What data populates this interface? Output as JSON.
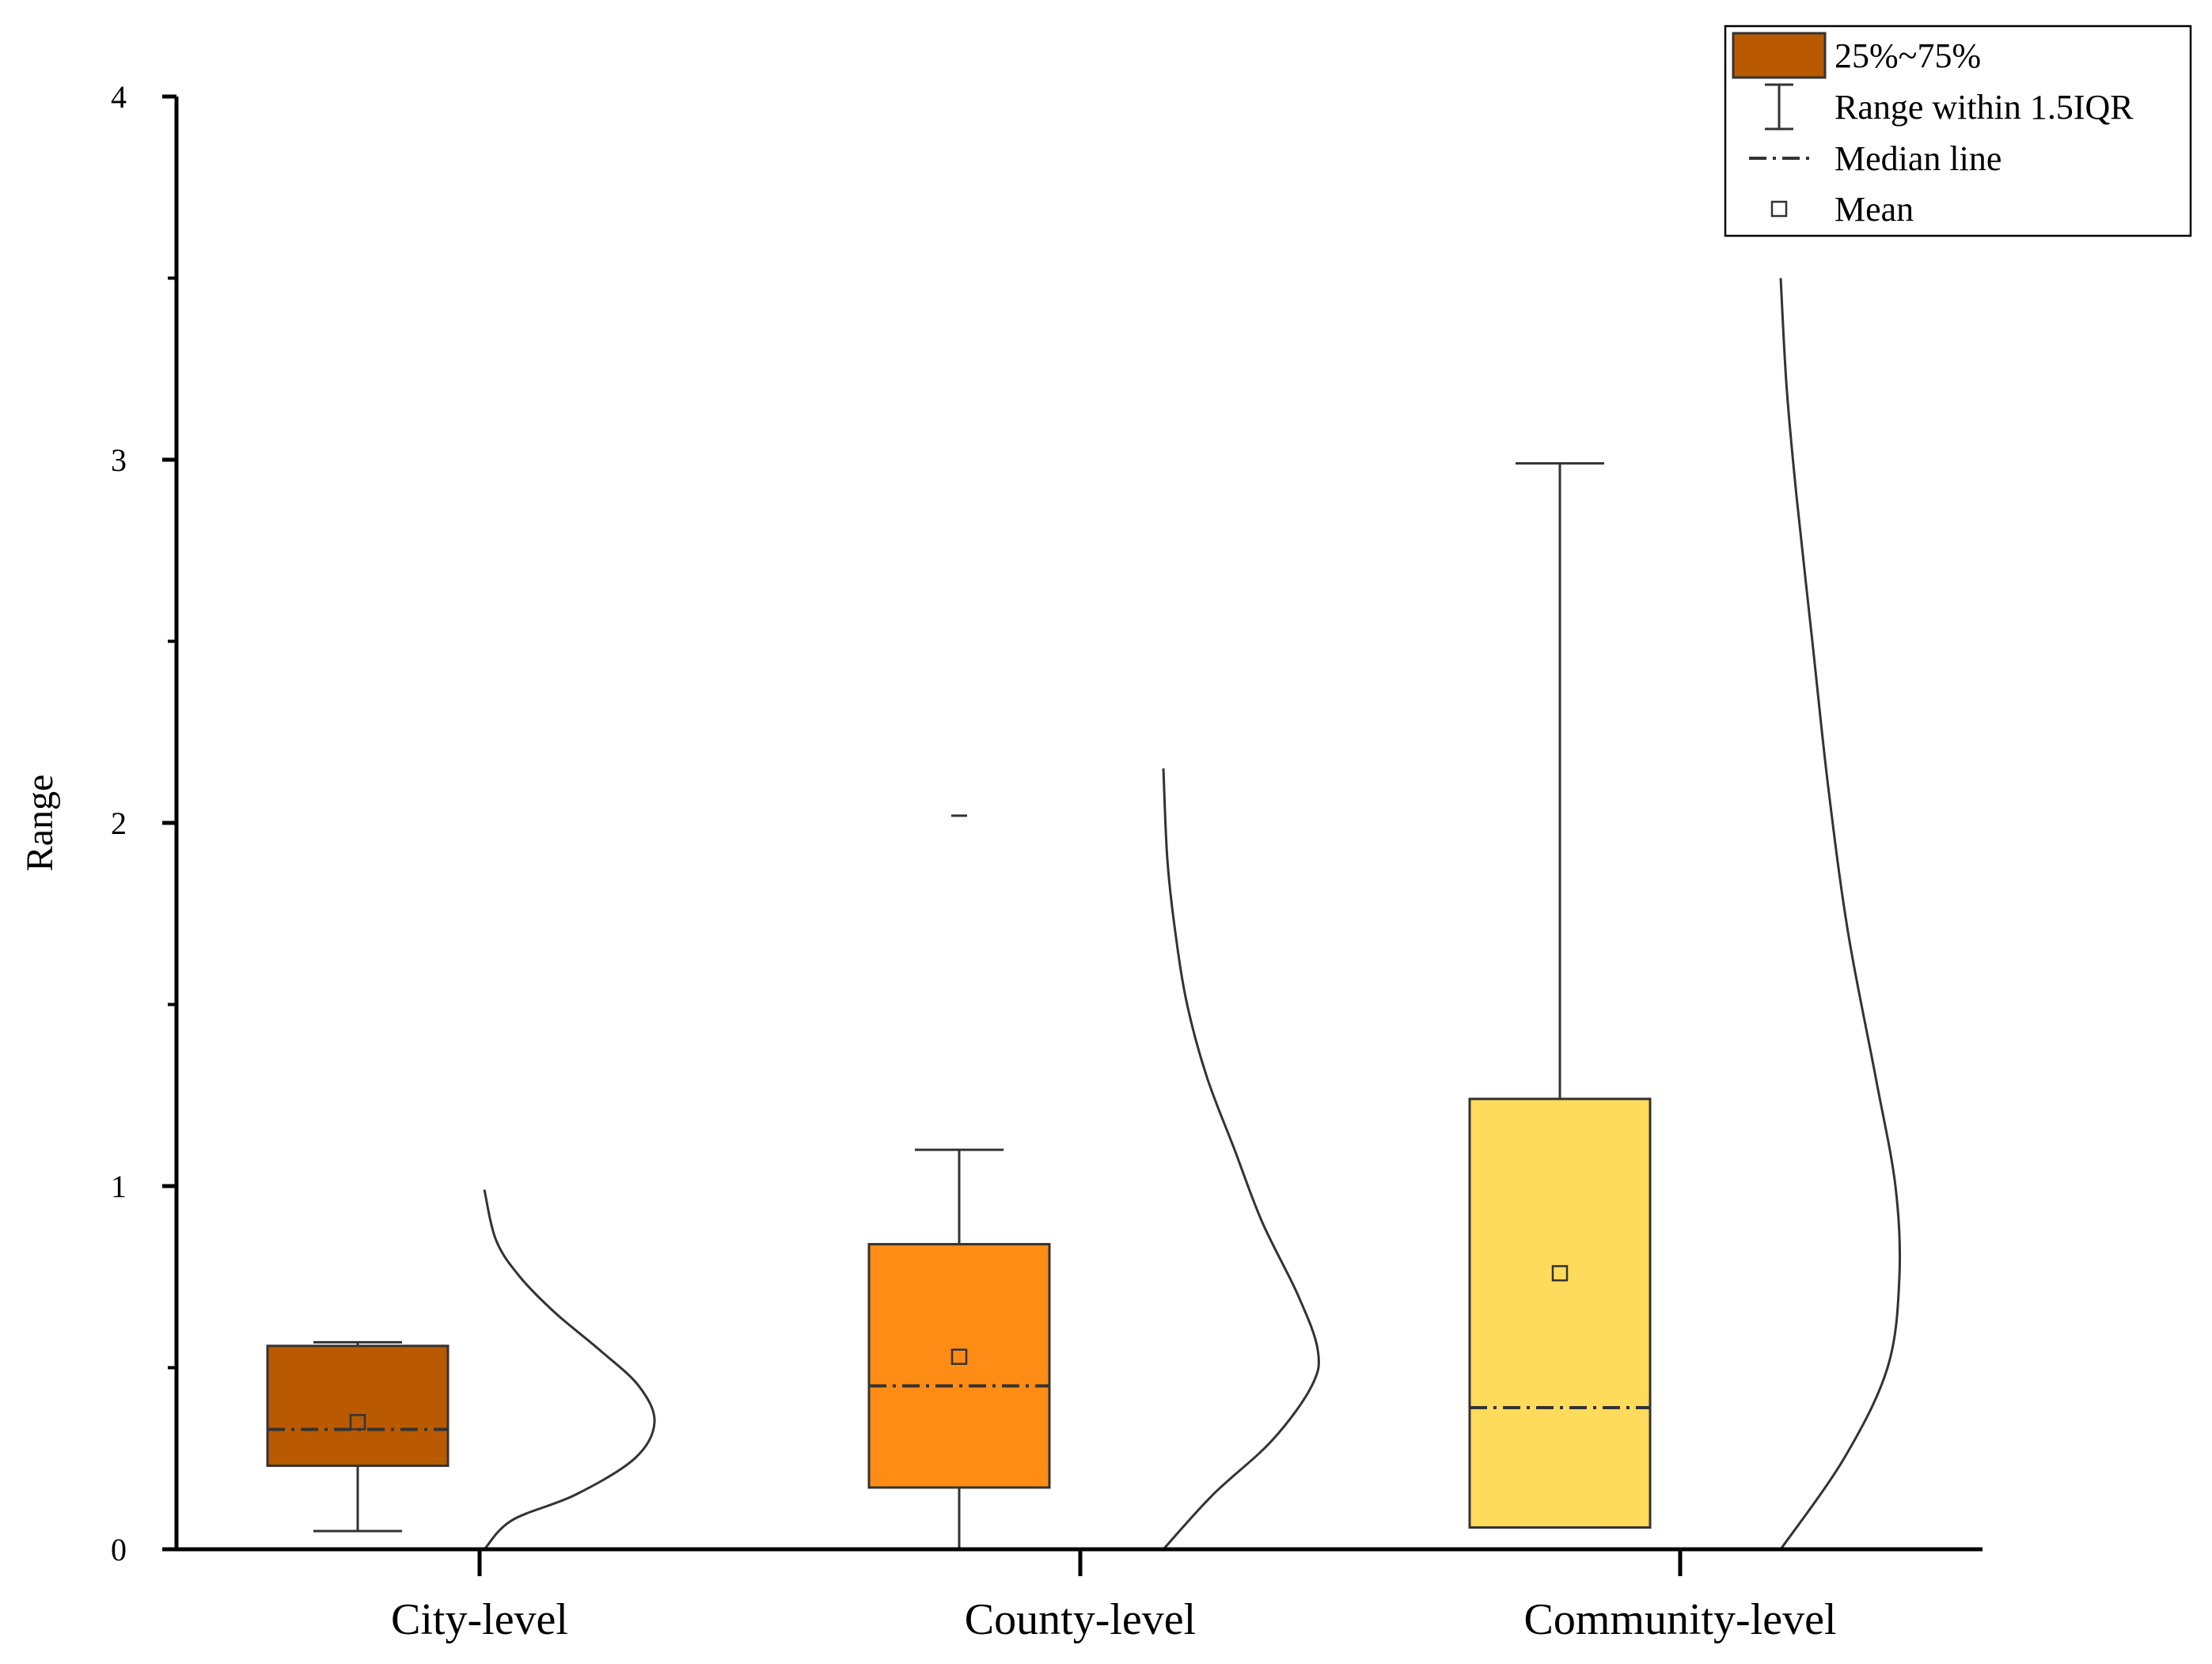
{
  "chart_data": {
    "type": "box",
    "title": "",
    "xlabel": "",
    "ylabel": "Range",
    "ylim": [
      0,
      4
    ],
    "yticks": [
      {
        "value": 0,
        "label": "0"
      },
      {
        "value": 1,
        "label": "1"
      },
      {
        "value": 2,
        "label": "2"
      },
      {
        "value": 3,
        "label": "3"
      },
      {
        "value": 4,
        "label": "4"
      }
    ],
    "minor_ticks": [
      0.5,
      1.5,
      2.5,
      3.5
    ],
    "categories": [
      {
        "label": "City-level",
        "q1": 0.23,
        "median": 0.33,
        "q3": 0.56,
        "whisker_low": 0.05,
        "whisker_high": 0.57,
        "mean": 0.35,
        "outliers": [],
        "color": "#BA5A00",
        "density": [
          [
            0.0,
            0.0
          ],
          [
            0.08,
            0.14
          ],
          [
            0.15,
            0.46
          ],
          [
            0.25,
            0.76
          ],
          [
            0.35,
            0.86
          ],
          [
            0.45,
            0.78
          ],
          [
            0.55,
            0.58
          ],
          [
            0.65,
            0.36
          ],
          [
            0.75,
            0.18
          ],
          [
            0.85,
            0.06
          ],
          [
            0.99,
            0.0
          ]
        ]
      },
      {
        "label": "County-level",
        "q1": 0.17,
        "median": 0.45,
        "q3": 0.84,
        "whisker_low": 0.0,
        "whisker_high": 1.1,
        "mean": 0.53,
        "outliers": [
          2.02
        ],
        "color": "#FF8C14",
        "density": [
          [
            0.0,
            0.0
          ],
          [
            0.15,
            0.25
          ],
          [
            0.3,
            0.55
          ],
          [
            0.45,
            0.75
          ],
          [
            0.55,
            0.78
          ],
          [
            0.7,
            0.68
          ],
          [
            0.9,
            0.5
          ],
          [
            1.1,
            0.36
          ],
          [
            1.3,
            0.22
          ],
          [
            1.5,
            0.12
          ],
          [
            1.7,
            0.06
          ],
          [
            1.9,
            0.02
          ],
          [
            2.15,
            0.0
          ]
        ]
      },
      {
        "label": "Community-level",
        "q1": 0.06,
        "median": 0.39,
        "q3": 1.24,
        "whisker_low": 0.06,
        "whisker_high": 2.99,
        "mean": 0.76,
        "outliers": [],
        "color": "#FFDB5C",
        "density": [
          [
            0.0,
            0.0
          ],
          [
            0.25,
            0.32
          ],
          [
            0.5,
            0.54
          ],
          [
            0.75,
            0.6
          ],
          [
            1.0,
            0.58
          ],
          [
            1.3,
            0.48
          ],
          [
            1.7,
            0.34
          ],
          [
            2.1,
            0.24
          ],
          [
            2.5,
            0.16
          ],
          [
            2.9,
            0.08
          ],
          [
            3.2,
            0.03
          ],
          [
            3.5,
            0.0
          ]
        ]
      }
    ],
    "legend": {
      "position": "top-right",
      "items": [
        {
          "symbol": "box",
          "label": "25%~75%",
          "color": "#BA5A00"
        },
        {
          "symbol": "whisker",
          "label": "Range within 1.5IQR"
        },
        {
          "symbol": "median",
          "label": "Median line"
        },
        {
          "symbol": "mean",
          "label": "Mean"
        }
      ]
    }
  }
}
